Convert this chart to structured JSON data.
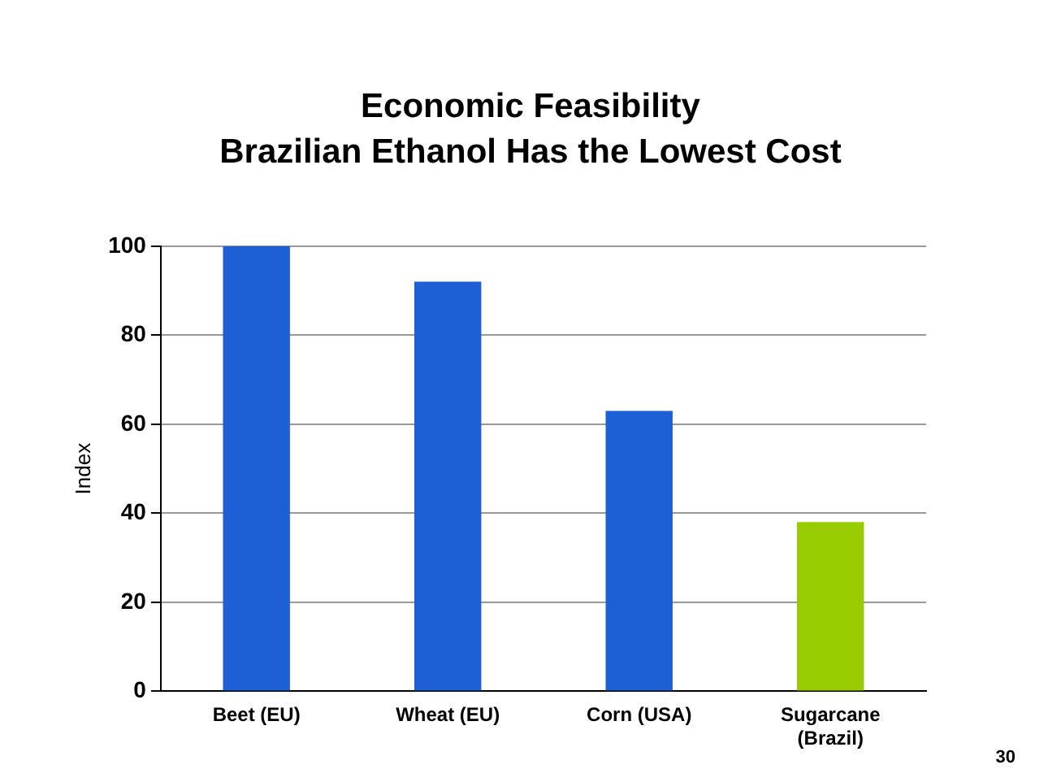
{
  "chart_data": {
    "type": "bar",
    "title": "Economic Feasibility",
    "subtitle": "Brazilian Ethanol Has the Lowest Cost",
    "ylabel": "Index",
    "categories": [
      "Beet (EU)",
      "Wheat (EU)",
      "Corn (USA)",
      "Sugarcane (Brazil)"
    ],
    "values": [
      100,
      92,
      63,
      38
    ],
    "colors": [
      "#1f5fd6",
      "#1f5fd6",
      "#1f5fd6",
      "#99cc00"
    ],
    "ylim": [
      0,
      100
    ],
    "yticks": [
      0,
      20,
      40,
      60,
      80,
      100
    ],
    "grid": "y",
    "legend": false,
    "annotations": [
      "30"
    ]
  }
}
